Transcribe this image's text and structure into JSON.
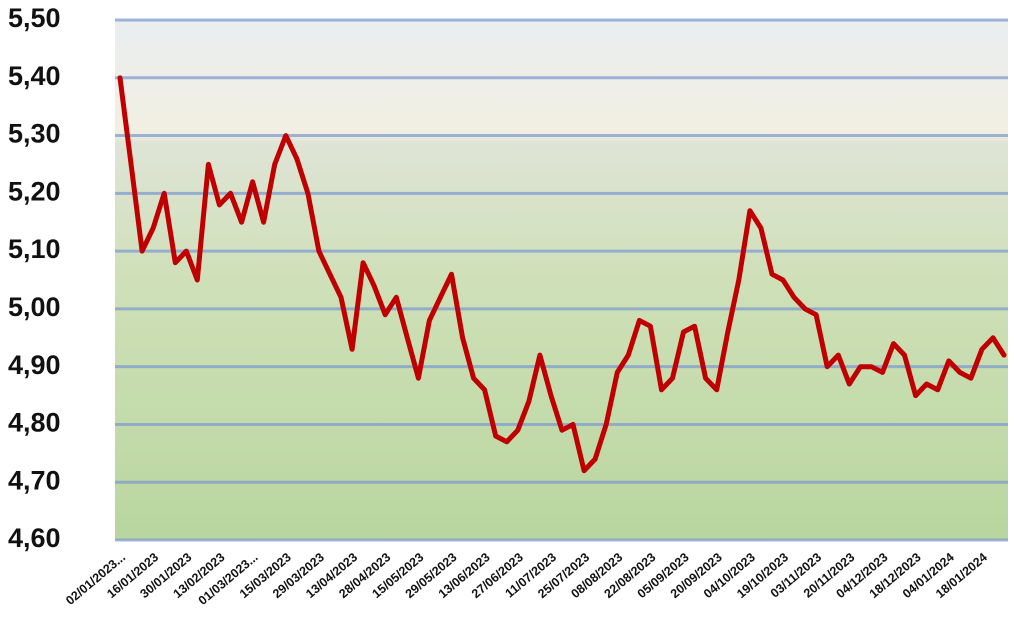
{
  "chart_data": {
    "type": "line",
    "categories": [
      "02/01/2023...",
      null,
      null,
      "16/01/2023",
      null,
      null,
      "30/01/2023",
      null,
      null,
      "13/02/2023",
      null,
      null,
      "01/03/2023...",
      null,
      null,
      "15/03/2023",
      null,
      null,
      "29/03/2023",
      null,
      null,
      "13/04/2023",
      null,
      null,
      "28/04/2023",
      null,
      null,
      "15/05/2023",
      null,
      null,
      "29/05/2023",
      null,
      null,
      "13/06/2023",
      null,
      null,
      "27/06/2023",
      null,
      null,
      "11/07/2023",
      null,
      null,
      "25/07/2023",
      null,
      null,
      "08/08/2023",
      null,
      null,
      "22/08/2023",
      null,
      null,
      "05/09/2023",
      null,
      null,
      "20/09/2023",
      null,
      null,
      "04/10/2023",
      null,
      null,
      "19/10/2023",
      null,
      null,
      "03/11/2023",
      null,
      null,
      "20/11/2023",
      null,
      null,
      "04/12/2023",
      null,
      null,
      "18/12/2023",
      null,
      null,
      "04/01/2024",
      null,
      null,
      "18/01/2024",
      null,
      null
    ],
    "series": [
      {
        "color": "#c00000",
        "values": [
          5.4,
          5.25,
          5.1,
          5.14,
          5.2,
          5.08,
          5.1,
          5.05,
          5.25,
          5.18,
          5.2,
          5.15,
          5.22,
          5.15,
          5.25,
          5.3,
          5.26,
          5.2,
          5.1,
          5.06,
          5.02,
          4.93,
          5.08,
          5.04,
          4.99,
          5.02,
          4.95,
          4.88,
          4.98,
          5.02,
          5.06,
          4.95,
          4.88,
          4.86,
          4.78,
          4.77,
          4.79,
          4.84,
          4.92,
          4.85,
          4.79,
          4.8,
          4.72,
          4.74,
          4.8,
          4.89,
          4.92,
          4.98,
          4.97,
          4.86,
          4.88,
          4.96,
          4.97,
          4.88,
          4.86,
          4.96,
          5.05,
          5.17,
          5.14,
          5.06,
          5.05,
          5.02,
          5.0,
          4.99,
          4.9,
          4.92,
          4.87,
          4.9,
          4.9,
          4.89,
          4.94,
          4.92,
          4.85,
          4.87,
          4.86,
          4.91,
          4.89,
          4.88,
          4.93,
          4.95,
          4.92
        ]
      }
    ],
    "ylim": [
      4.6,
      5.5
    ],
    "yticks": [
      {
        "value": 4.6,
        "label": "4,60"
      },
      {
        "value": 4.7,
        "label": "4,70"
      },
      {
        "value": 4.8,
        "label": "4,80"
      },
      {
        "value": 4.9,
        "label": "4,90"
      },
      {
        "value": 5.0,
        "label": "5,00"
      },
      {
        "value": 5.1,
        "label": "5,10"
      },
      {
        "value": 5.2,
        "label": "5,20"
      },
      {
        "value": 5.3,
        "label": "5,30"
      },
      {
        "value": 5.4,
        "label": "5,40"
      },
      {
        "value": 5.5,
        "label": "5,50"
      }
    ],
    "grid": true
  }
}
